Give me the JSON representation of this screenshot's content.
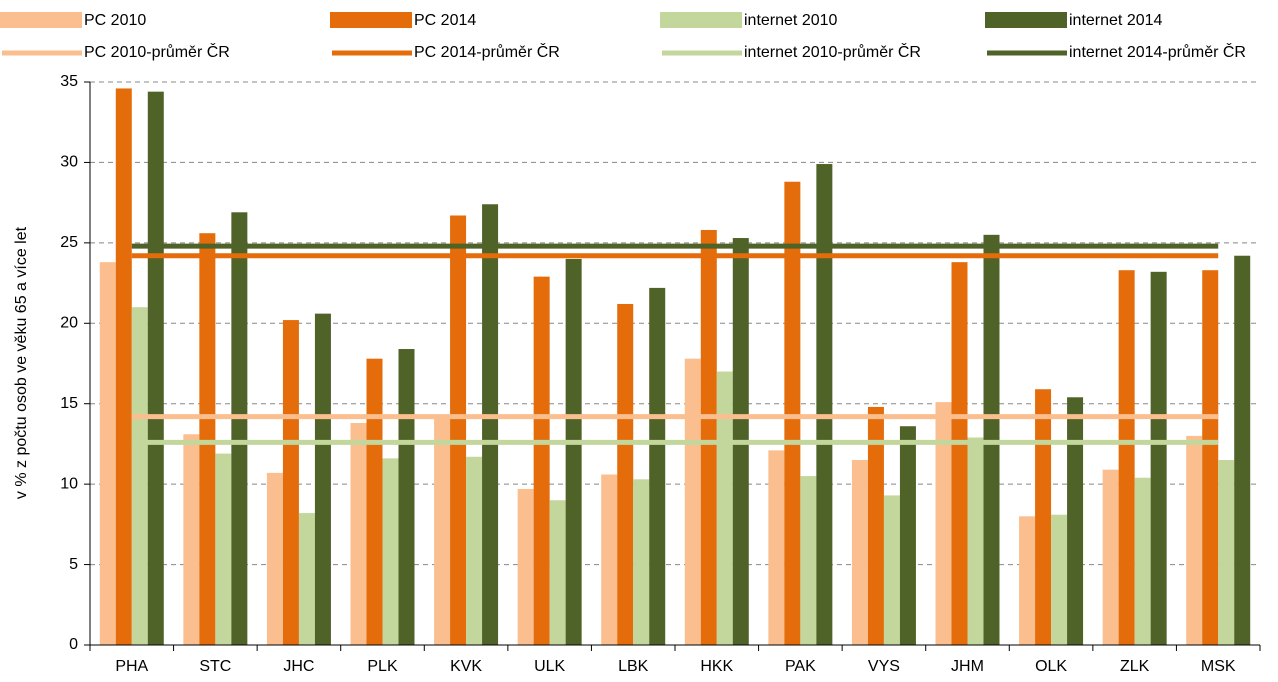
{
  "chart_data": {
    "type": "bar",
    "y_label": "v % z počtu osob ve věku 65 a více let",
    "categories": [
      "PHA",
      "STC",
      "JHC",
      "PLK",
      "KVK",
      "ULK",
      "LBK",
      "HKK",
      "PAK",
      "VYS",
      "JHM",
      "OLK",
      "ZLK",
      "MSK"
    ],
    "series": [
      {
        "name": "PC 2010",
        "color": "#fbbf8f",
        "values": [
          23.8,
          13.1,
          10.7,
          13.8,
          14.3,
          9.7,
          10.6,
          17.8,
          12.1,
          11.5,
          15.1,
          8.0,
          10.9,
          13.0
        ]
      },
      {
        "name": "PC 2014",
        "color": "#e46c0a",
        "values": [
          34.6,
          25.6,
          20.2,
          17.8,
          26.7,
          22.9,
          21.2,
          25.8,
          28.8,
          14.8,
          23.8,
          15.9,
          23.3,
          23.3
        ]
      },
      {
        "name": "internet 2010",
        "color": "#c3d69b",
        "values": [
          21.0,
          11.9,
          8.2,
          11.6,
          11.7,
          9.0,
          10.3,
          17.0,
          10.5,
          9.3,
          12.9,
          8.1,
          10.4,
          11.5
        ]
      },
      {
        "name": "internet 2014",
        "color": "#4f6228",
        "values": [
          34.4,
          26.9,
          20.6,
          18.4,
          27.4,
          24.0,
          22.2,
          25.3,
          29.9,
          13.6,
          25.5,
          15.4,
          23.2,
          24.2
        ]
      }
    ],
    "average_lines": [
      {
        "name": "PC 2010-průměr ČR",
        "color": "#fbbf8f",
        "value": 14.2
      },
      {
        "name": "PC 2014-průměr ČR",
        "color": "#e46c0a",
        "value": 24.2
      },
      {
        "name": "internet 2010-průměr ČR",
        "color": "#c3d69b",
        "value": 12.6
      },
      {
        "name": "internet 2014-průměr ČR",
        "color": "#4f6228",
        "value": 24.8
      }
    ],
    "ylim": [
      0,
      35
    ],
    "yticks": [
      0,
      5,
      10,
      15,
      20,
      25,
      30,
      35
    ],
    "grid": true
  }
}
